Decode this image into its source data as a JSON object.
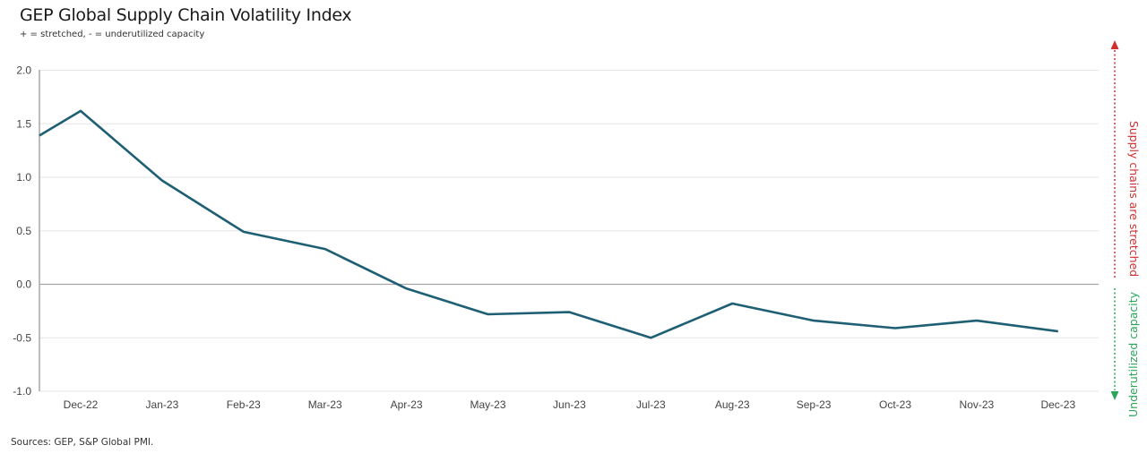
{
  "header": {
    "title": "GEP Global Supply Chain Volatility Index",
    "subtitle": "+ = stretched, - = underutilized capacity"
  },
  "footer": {
    "source": "Sources: GEP, S&P Global PMI."
  },
  "annotations": {
    "upper": "Supply chains are stretched",
    "lower": "Underutilized capacity",
    "upper_color": "#d03030",
    "lower_color": "#2aa55a"
  },
  "colors": {
    "line": "#1f5f73",
    "grid": "#e6e6e6",
    "zero_line": "#a6a6a6",
    "axis": "#a6a6a6"
  },
  "chart_data": {
    "type": "line",
    "title": "GEP Global Supply Chain Volatility Index",
    "subtitle": "+ = stretched, - = underutilized capacity",
    "xlabel": "",
    "ylabel": "",
    "ylim": [
      -1.0,
      2.0
    ],
    "yticks": [
      "2.0",
      "1.5",
      "1.0",
      "0.5",
      "0.0",
      "-0.5",
      "-1.0"
    ],
    "ytick_values": [
      2.0,
      1.5,
      1.0,
      0.5,
      0.0,
      -0.5,
      -1.0
    ],
    "grid": true,
    "legend": null,
    "leading_partial_value": 1.39,
    "categories": [
      "Dec-22",
      "Jan-23",
      "Feb-23",
      "Mar-23",
      "Apr-23",
      "May-23",
      "Jun-23",
      "Jul-23",
      "Aug-23",
      "Sep-23",
      "Oct-23",
      "Nov-23",
      "Dec-23"
    ],
    "series": [
      {
        "name": "GEP Global Supply Chain Volatility Index",
        "values": [
          1.62,
          0.97,
          0.49,
          0.33,
          -0.04,
          -0.28,
          -0.26,
          -0.5,
          -0.18,
          -0.34,
          -0.41,
          -0.34,
          -0.44
        ]
      }
    ],
    "annotations": [
      "Supply chains are stretched",
      "Underutilized capacity"
    ],
    "source": "Sources: GEP, S&P Global PMI."
  }
}
